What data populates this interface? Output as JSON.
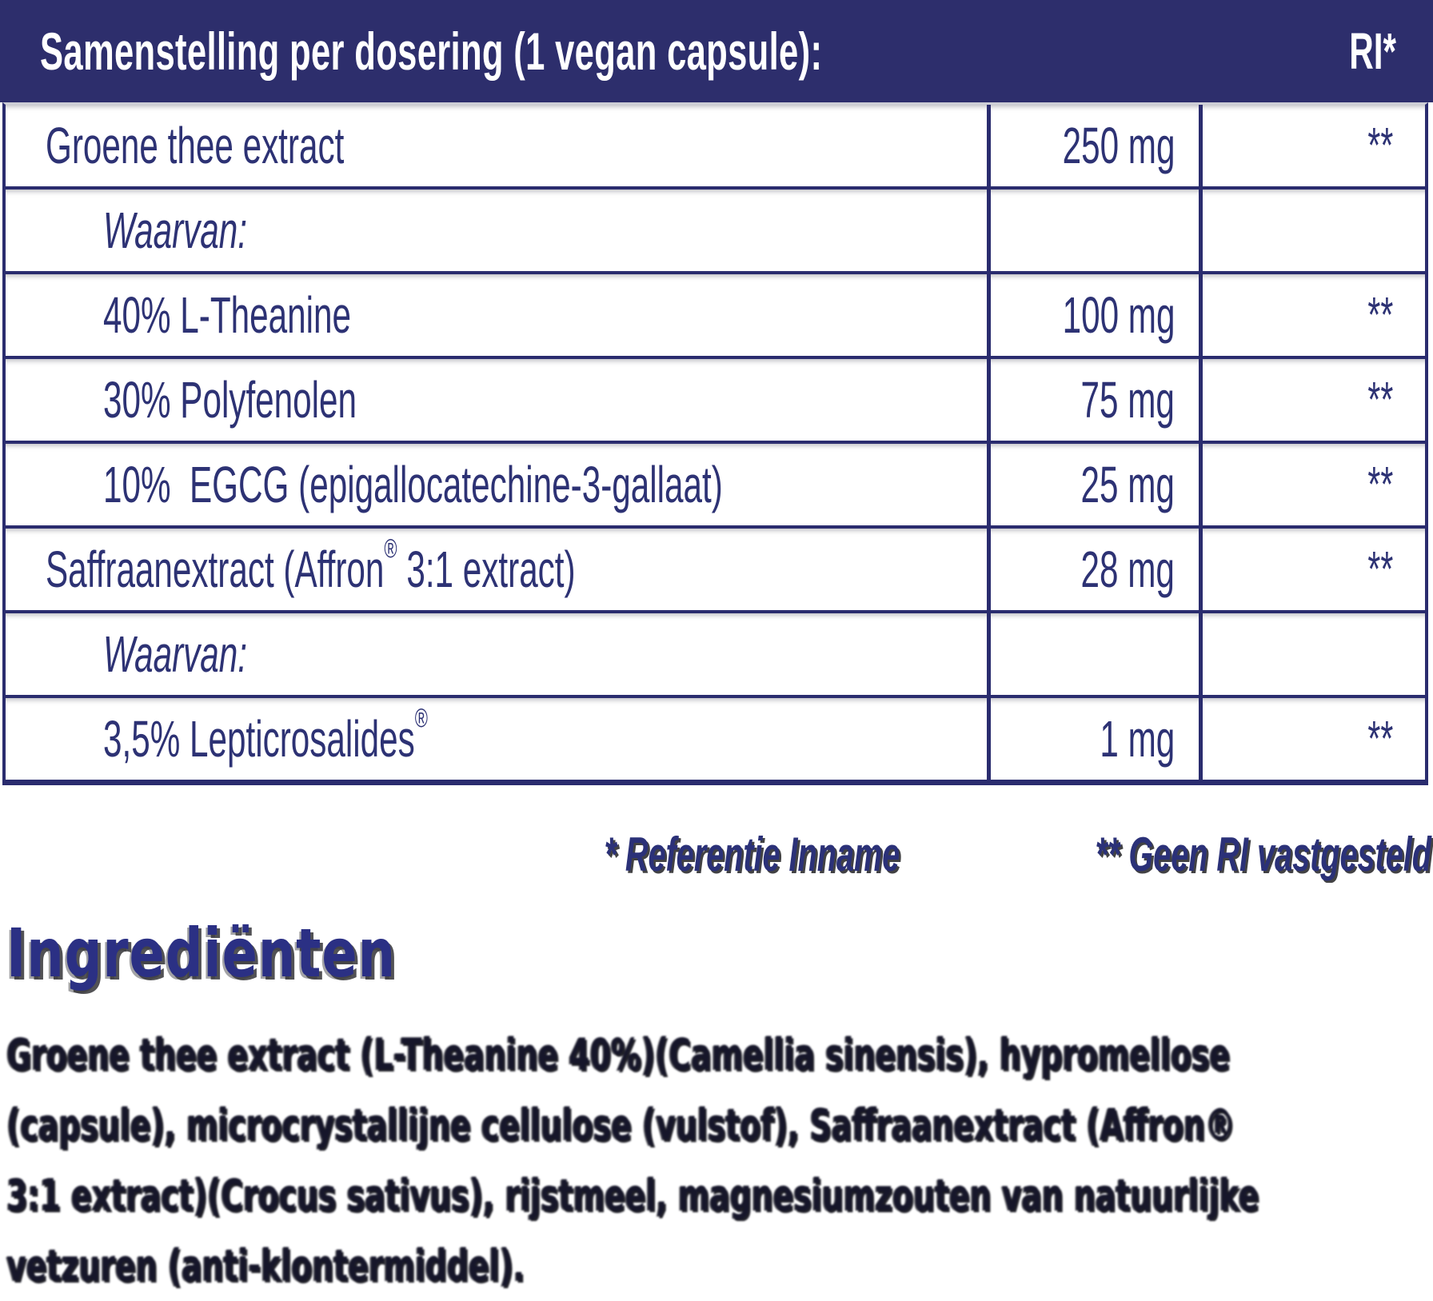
{
  "header": {
    "title": "Samenstelling per dosering (1 vegan capsule):",
    "ri_label": "RI*"
  },
  "table": {
    "rows": [
      {
        "name": "Groene thee extract",
        "indent": false,
        "italic": false,
        "amount": "250 mg",
        "ri": "**"
      },
      {
        "name": "Waarvan:",
        "indent": true,
        "italic": true,
        "amount": "",
        "ri": ""
      },
      {
        "name": "40% L-Theanine",
        "indent": true,
        "italic": false,
        "amount": "100 mg",
        "ri": "**"
      },
      {
        "name": "30% Polyfenolen",
        "indent": true,
        "italic": false,
        "amount": "75 mg",
        "ri": "**"
      },
      {
        "name": "10%  EGCG (epigallocatechine-3-gallaat)",
        "indent": true,
        "italic": false,
        "amount": "25 mg",
        "ri": "**"
      },
      {
        "name": "Saffraanextract (Affron® 3:1 extract)",
        "indent": false,
        "italic": false,
        "amount": "28 mg",
        "ri": "**"
      },
      {
        "name": "Waarvan:",
        "indent": true,
        "italic": true,
        "amount": "",
        "ri": ""
      },
      {
        "name": "3,5% Lepticrosalides®",
        "indent": true,
        "italic": false,
        "amount": "1 mg",
        "ri": "**"
      }
    ]
  },
  "footnotes": {
    "reference": "* Referentie Inname",
    "geen_ri": "** Geen RI vastgesteld"
  },
  "ingredients": {
    "heading": "Ingrediënten",
    "lines": [
      "Groene thee extract (L-Theanine 40%)(Camellia sinensis), hypromellose",
      "(capsule), microcrystallijne cellulose (vulstof), Saffraanextract (Affron®",
      "3:1 extract)(Crocus sativus), rijstmeel, magnesiumzouten van natuurlijke",
      "vetzuren (anti-klontermiddel)."
    ]
  },
  "colors": {
    "header_bg": "#2d2e6c",
    "border_navy": "#2a2c6e",
    "text_navy": "#2d3274",
    "shadow_gray": "#343437"
  }
}
